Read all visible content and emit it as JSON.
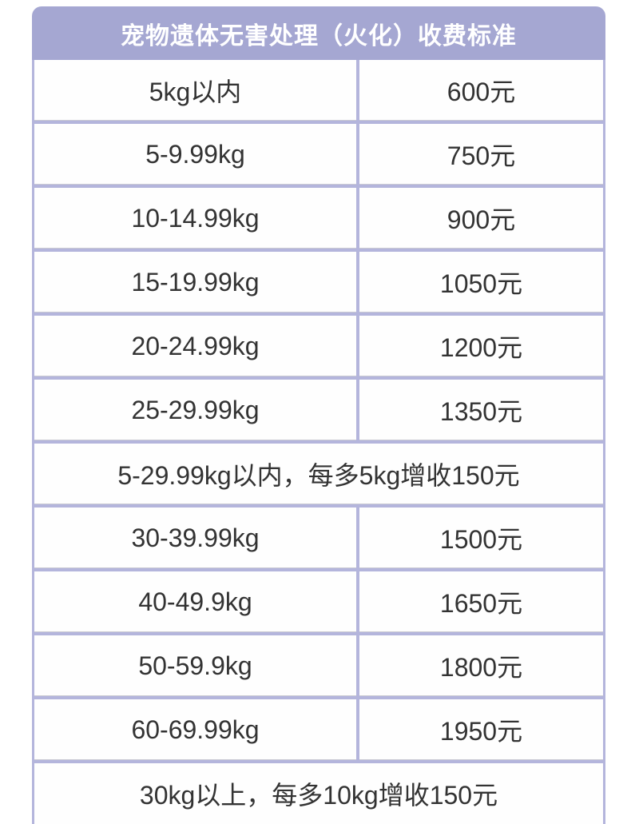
{
  "title": "宠物遗体无害处理（火化）收费标准",
  "colors": {
    "header_bg": "#a5a7d2",
    "border": "#b4b5dc",
    "header_text": "#ffffff",
    "body_text": "#333333"
  },
  "chart_data": {
    "type": "table",
    "title": "宠物遗体无害处理（火化）收费标准",
    "legend_position": "none",
    "grid": true,
    "rows": [
      [
        "5kg以内",
        "600元"
      ],
      [
        "5-9.99kg",
        "750元"
      ],
      [
        "10-14.99kg",
        "900元"
      ],
      [
        "15-19.99kg",
        "1050元"
      ],
      [
        "20-24.99kg",
        "1200元"
      ],
      [
        "25-29.99kg",
        "1350元"
      ],
      [
        "5-29.99kg以内，每多5kg增收150元"
      ],
      [
        "30-39.99kg",
        "1500元"
      ],
      [
        "40-49.9kg",
        "1650元"
      ],
      [
        "50-59.9kg",
        "1800元"
      ],
      [
        "60-69.99kg",
        "1950元"
      ],
      [
        "30kg以上，每多10kg增收150元"
      ]
    ],
    "prices_numeric_yuan": [
      600,
      750,
      900,
      1050,
      1200,
      1350,
      1500,
      1650,
      1800,
      1950
    ]
  }
}
